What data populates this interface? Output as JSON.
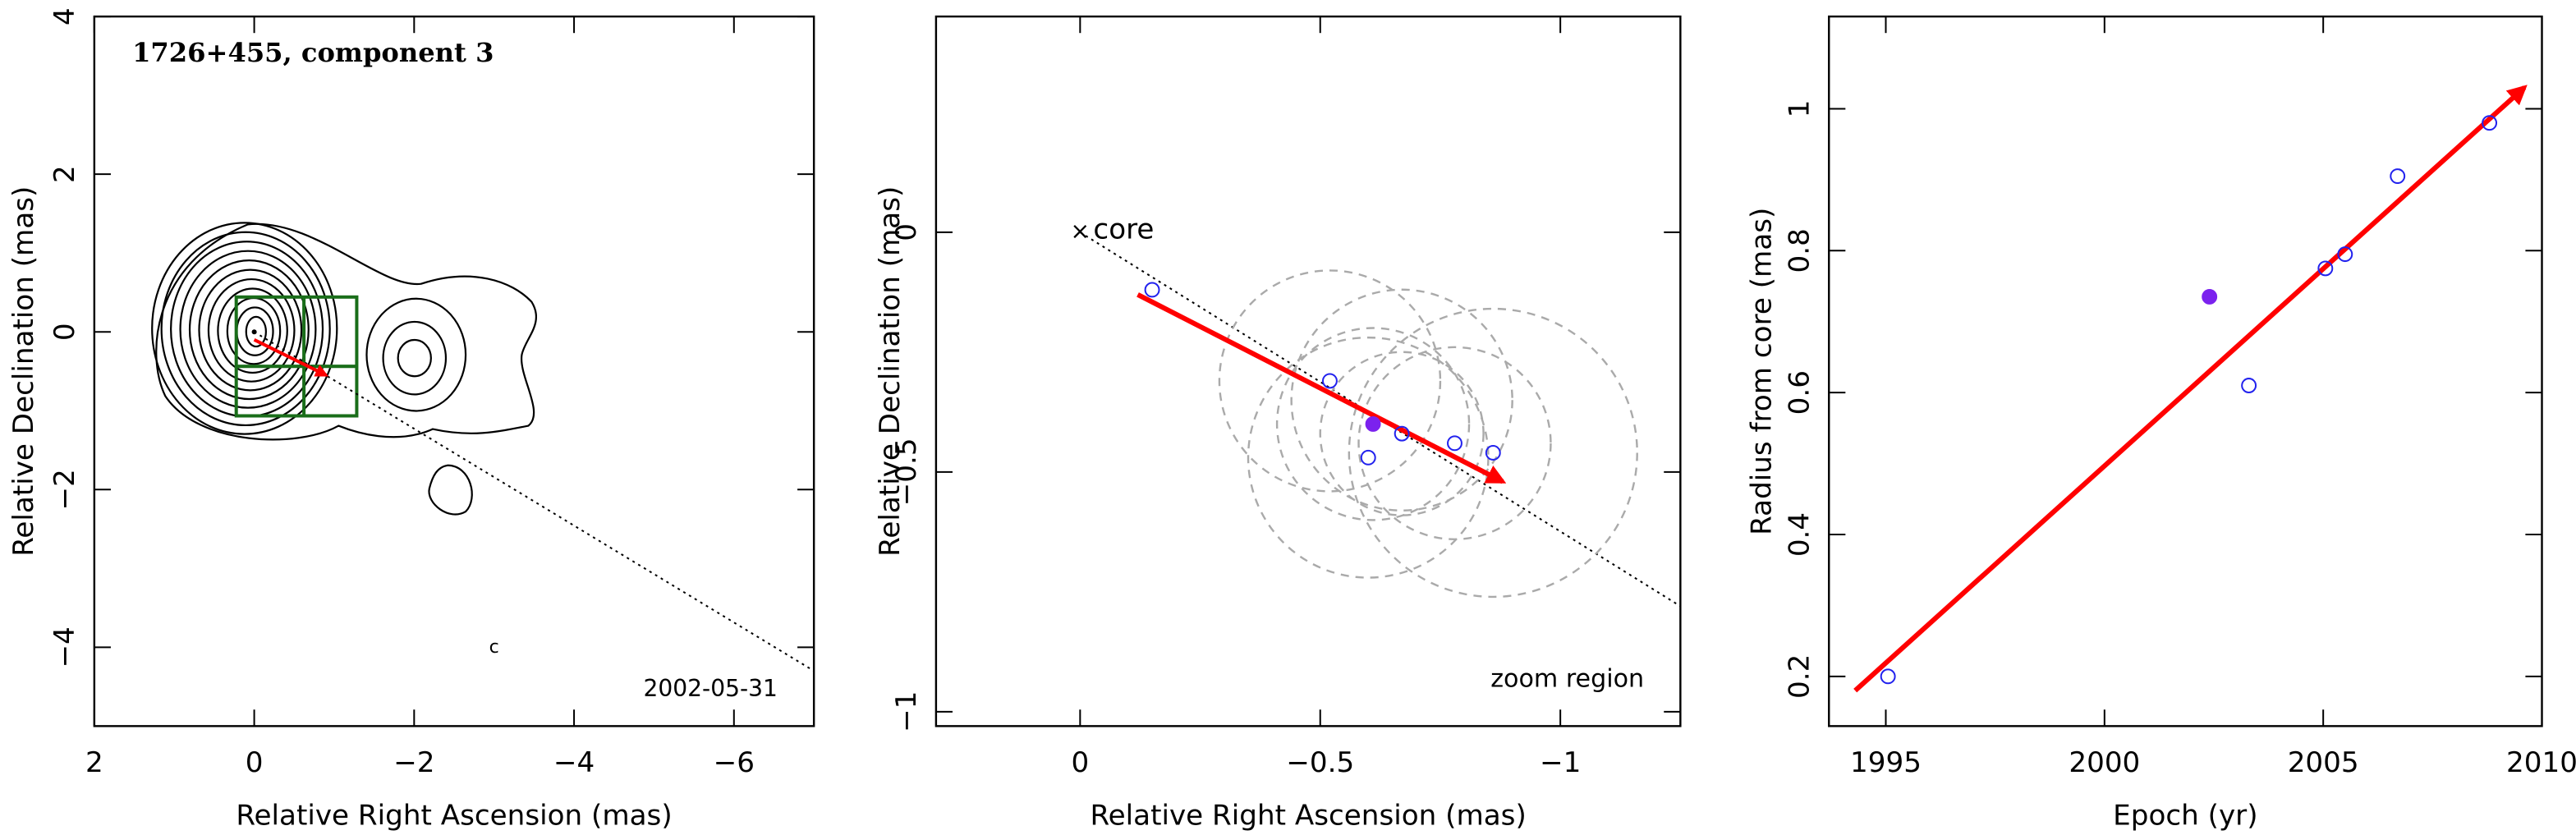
{
  "chart_data": [
    {
      "type": "contour_map",
      "title": "1726+455, component 3",
      "date": "2002-05-31",
      "x_label": "Relative Right Ascension (mas)",
      "y_label": "Relative Declination (mas)",
      "xlim": [
        2,
        -7
      ],
      "ylim": [
        -5,
        4
      ],
      "xticks": [
        2,
        0,
        {
          "value": -2,
          "label": "−2"
        },
        {
          "value": -4,
          "label": "−4"
        },
        {
          "value": -6,
          "label": "−6"
        }
      ],
      "yticks": [
        {
          "value": -4,
          "label": "−4"
        },
        {
          "value": -2,
          "label": "−2"
        },
        0,
        2,
        4
      ],
      "annotation": {
        "text": "c",
        "x": -3,
        "y": -4
      },
      "core_axis": {
        "x": [
          0,
          -7
        ],
        "y": [
          0,
          -4.3
        ]
      },
      "arrow": {
        "x": [
          0,
          -0.9
        ],
        "y": [
          -0.1,
          -0.55
        ],
        "color": "#ff0000"
      }
    },
    {
      "type": "zoom",
      "label": "zoom region",
      "core_label": "core",
      "x_label": "Relative Right Ascension (mas)",
      "y_label": "Relative Declination (mas)",
      "xlim": [
        0.3,
        -1.25
      ],
      "ylim": [
        -1.03,
        0.45
      ],
      "xticks": [
        0,
        {
          "value": -0.5,
          "label": "−0.5"
        },
        {
          "value": -1,
          "label": "−1"
        }
      ],
      "yticks": [
        {
          "value": -1,
          "label": "−1"
        },
        {
          "value": -0.5,
          "label": "−0.5"
        },
        0
      ],
      "core_axis": {
        "x": [
          0,
          -1.25
        ],
        "y": [
          0,
          -0.78
        ]
      },
      "arrow": {
        "x": [
          -0.12,
          -0.88
        ],
        "y": [
          -0.13,
          -0.52
        ],
        "color": "#ff0000"
      },
      "component_circles": {
        "x": [
          -0.52,
          -0.67,
          -0.6,
          -0.67,
          -0.78,
          -0.86,
          -0.61
        ],
        "y": [
          -0.31,
          -0.35,
          -0.47,
          -0.42,
          -0.44,
          -0.46,
          -0.4
        ],
        "r": [
          0.23,
          0.23,
          0.25,
          0.17,
          0.2,
          0.3,
          0.2
        ],
        "color": "#aaaaaa"
      },
      "series": [
        {
          "marker": "open",
          "color": "#2222ee",
          "x": [
            -0.15,
            -0.52,
            -0.6,
            -0.67,
            -0.78,
            -0.86
          ],
          "y": [
            -0.12,
            -0.31,
            -0.47,
            -0.42,
            -0.44,
            -0.46
          ]
        },
        {
          "marker": "filled",
          "color": "#7b22ee",
          "x": [
            -0.61
          ],
          "y": [
            -0.4
          ]
        }
      ]
    },
    {
      "type": "scatter",
      "x_label": "Epoch (yr)",
      "y_label": "Radius from core (mas)",
      "xlim": [
        1993.7,
        2010
      ],
      "ylim": [
        0.13,
        1.13
      ],
      "xticks": [
        1995,
        2000,
        2005,
        2010
      ],
      "yticks": [
        0.2,
        0.4,
        0.6,
        0.8,
        1
      ],
      "arrow": {
        "x": [
          1994.3,
          2009.6
        ],
        "y": [
          0.18,
          1.03
        ],
        "color": "#ff0000"
      },
      "series": [
        {
          "marker": "open",
          "color": "#2222ee",
          "x": [
            1995.05,
            2003.3,
            2005.05,
            2005.5,
            2006.7,
            2008.8
          ],
          "y": [
            0.2,
            0.61,
            0.775,
            0.795,
            0.905,
            0.98
          ]
        },
        {
          "marker": "filled",
          "color": "#7b22ee",
          "x": [
            2002.4
          ],
          "y": [
            0.735
          ]
        }
      ]
    }
  ]
}
